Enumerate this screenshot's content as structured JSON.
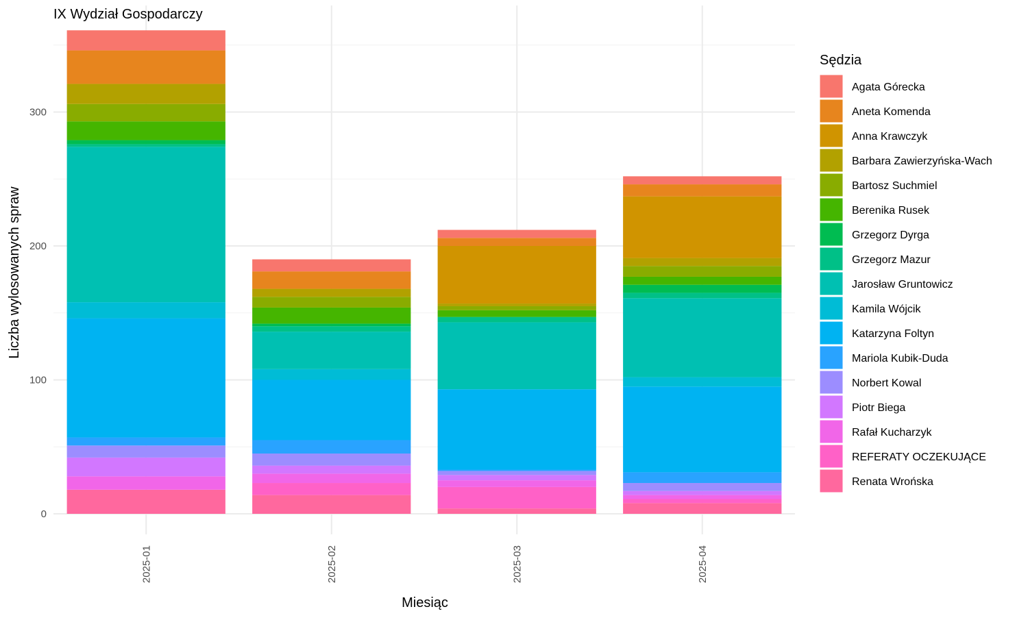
{
  "chart_data": {
    "type": "bar",
    "stacked": true,
    "title": "IX Wydział Gospodarczy",
    "xlabel": "Miesiąc",
    "ylabel": "Liczba wylosowanych spraw",
    "categories": [
      "2025-01",
      "2025-02",
      "2025-03",
      "2025-04"
    ],
    "ylim": [
      0,
      380
    ],
    "yticks": [
      0,
      100,
      200,
      300
    ],
    "grid": true,
    "legend": {
      "title": "Sędzia",
      "position": "right"
    },
    "series": [
      {
        "name": "Agata Górecka",
        "color": "#F8766D",
        "values": [
          15,
          9,
          6,
          6
        ]
      },
      {
        "name": "Aneta Komenda",
        "color": "#E7851E",
        "values": [
          25,
          13,
          6,
          9
        ]
      },
      {
        "name": "Anna Krawczyk",
        "color": "#D09400",
        "values": [
          0,
          0,
          43,
          46
        ]
      },
      {
        "name": "Barbara Zawierzyńska-Wach",
        "color": "#B2A100",
        "values": [
          15,
          6,
          2,
          6
        ]
      },
      {
        "name": "Bartosz Suchmiel",
        "color": "#89AC00",
        "values": [
          13,
          8,
          3,
          8
        ]
      },
      {
        "name": "Berenika Rusek",
        "color": "#45B500",
        "values": [
          14,
          12,
          5,
          6
        ]
      },
      {
        "name": "Grzegorz Dyrga",
        "color": "#00BC51",
        "values": [
          3,
          2,
          0,
          6
        ]
      },
      {
        "name": "Grzegorz Mazur",
        "color": "#00C087",
        "values": [
          2,
          4,
          4,
          4
        ]
      },
      {
        "name": "Jarosław Gruntowicz",
        "color": "#00C0B2",
        "values": [
          116,
          28,
          50,
          59
        ]
      },
      {
        "name": "Kamila Wójcik",
        "color": "#00BCD6",
        "values": [
          12,
          8,
          0,
          7
        ]
      },
      {
        "name": "Katarzyna Foltyn",
        "color": "#00B3F2",
        "values": [
          89,
          45,
          60,
          64
        ]
      },
      {
        "name": "Mariola Kubik-Duda",
        "color": "#29A3FF",
        "values": [
          6,
          10,
          1,
          8
        ]
      },
      {
        "name": "Norbert Kowal",
        "color": "#9C8DFF",
        "values": [
          9,
          9,
          3,
          6
        ]
      },
      {
        "name": "Piotr Biega",
        "color": "#D277FF",
        "values": [
          14,
          6,
          4,
          3
        ]
      },
      {
        "name": "Rafał Kucharzyk",
        "color": "#F166E8",
        "values": [
          10,
          7,
          5,
          3
        ]
      },
      {
        "name": "REFERATY OCZEKUJĄCE",
        "color": "#FF61C7",
        "values": [
          0,
          9,
          16,
          3
        ]
      },
      {
        "name": "Renata Wrońska",
        "color": "#FF689E",
        "values": [
          18,
          14,
          4,
          8
        ]
      }
    ]
  }
}
